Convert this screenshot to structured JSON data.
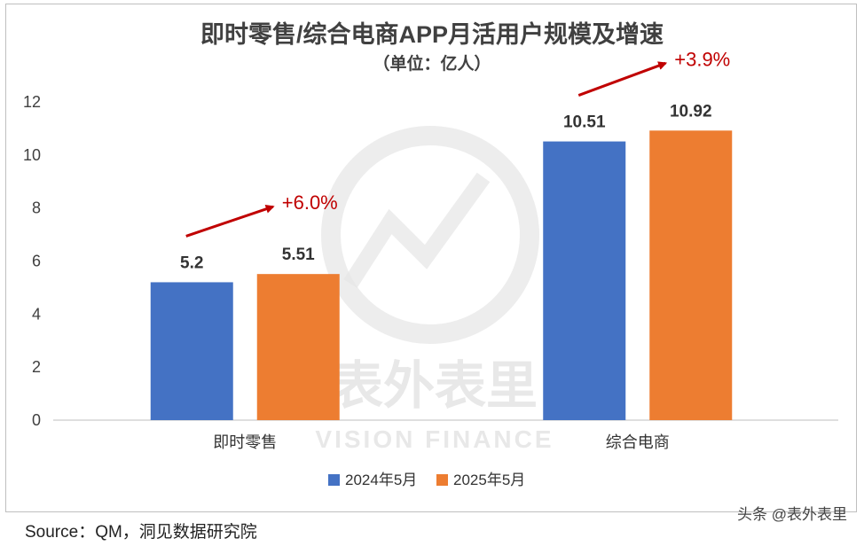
{
  "chart_data": {
    "type": "bar",
    "title": "即时零售/综合电商APP月活用户规模及增速",
    "subtitle": "（单位：亿人）",
    "categories": [
      "即时零售",
      "综合电商"
    ],
    "series": [
      {
        "name": "2024年5月",
        "values": [
          5.2,
          10.51
        ],
        "labels": [
          "5.2",
          "10.51"
        ],
        "color": "#4472C4"
      },
      {
        "name": "2025年5月",
        "values": [
          5.51,
          10.92
        ],
        "labels": [
          "5.51",
          "10.92"
        ],
        "color": "#ED7D31"
      }
    ],
    "growth_labels": [
      "+6.0%",
      "+3.9%"
    ],
    "growth_color": "#C00000",
    "ylim": [
      0,
      12
    ],
    "yticks": [
      "0",
      "2",
      "4",
      "6",
      "8",
      "10",
      "12"
    ],
    "grid": false,
    "legend": "bottom-center"
  },
  "watermark": {
    "chinese": "表外表里",
    "english": "VISION FINANCE"
  },
  "footer": {
    "source": "Source：QM，洞见数据研究院",
    "credit": "头条 @表外表里"
  }
}
